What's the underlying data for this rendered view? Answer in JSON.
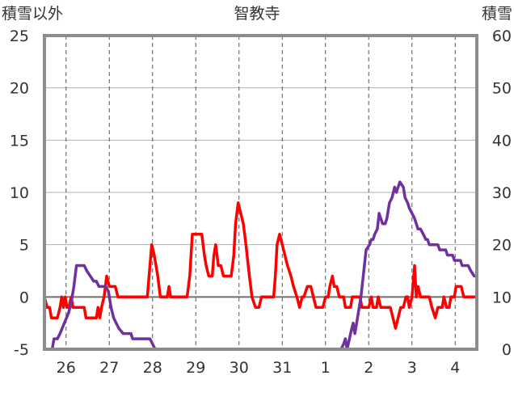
{
  "chart_data": {
    "type": "line",
    "title": "智教寺",
    "y_left_label": "積雪以外",
    "y_right_label": "積雪",
    "y_left_range": [
      -5,
      25
    ],
    "y_left_ticks": [
      "25",
      "20",
      "15",
      "10",
      "5",
      "0",
      "-5"
    ],
    "y_right_range": [
      0,
      60
    ],
    "y_right_ticks": [
      "60",
      "50",
      "40",
      "30",
      "20",
      "10",
      "0"
    ],
    "x_range": [
      0,
      10
    ],
    "x_tick_labels": [
      "26",
      "27",
      "28",
      "29",
      "30",
      "31",
      "1",
      "2",
      "3",
      "4"
    ],
    "grid": true,
    "series": [
      {
        "color": "#ff0000",
        "axis": "left",
        "points": [
          [
            0.0,
            0
          ],
          [
            0.06,
            -1
          ],
          [
            0.12,
            -1
          ],
          [
            0.16,
            -2
          ],
          [
            0.3,
            -2
          ],
          [
            0.36,
            -1
          ],
          [
            0.4,
            0
          ],
          [
            0.44,
            -1
          ],
          [
            0.48,
            0
          ],
          [
            0.52,
            -1
          ],
          [
            0.56,
            -1
          ],
          [
            0.62,
            0
          ],
          [
            0.66,
            -1
          ],
          [
            0.92,
            -1
          ],
          [
            0.96,
            -2
          ],
          [
            1.2,
            -2
          ],
          [
            1.24,
            -1
          ],
          [
            1.28,
            -2
          ],
          [
            1.32,
            -1
          ],
          [
            1.38,
            0
          ],
          [
            1.44,
            2
          ],
          [
            1.5,
            1
          ],
          [
            1.64,
            1
          ],
          [
            1.7,
            0
          ],
          [
            2.38,
            0
          ],
          [
            2.48,
            5
          ],
          [
            2.54,
            4
          ],
          [
            2.62,
            2
          ],
          [
            2.68,
            0
          ],
          [
            2.84,
            0
          ],
          [
            2.88,
            1
          ],
          [
            2.92,
            0
          ],
          [
            3.3,
            0
          ],
          [
            3.36,
            2
          ],
          [
            3.42,
            6
          ],
          [
            3.64,
            6
          ],
          [
            3.7,
            4
          ],
          [
            3.74,
            3
          ],
          [
            3.8,
            2
          ],
          [
            3.88,
            2
          ],
          [
            3.92,
            4
          ],
          [
            3.96,
            5
          ],
          [
            4.02,
            3
          ],
          [
            4.08,
            3
          ],
          [
            4.14,
            2
          ],
          [
            4.32,
            2
          ],
          [
            4.38,
            4
          ],
          [
            4.42,
            7
          ],
          [
            4.48,
            9
          ],
          [
            4.54,
            8
          ],
          [
            4.6,
            7
          ],
          [
            4.66,
            5
          ],
          [
            4.74,
            2
          ],
          [
            4.8,
            0
          ],
          [
            4.88,
            -1
          ],
          [
            4.96,
            -1
          ],
          [
            5.02,
            0
          ],
          [
            5.3,
            0
          ],
          [
            5.34,
            2
          ],
          [
            5.38,
            5
          ],
          [
            5.44,
            6
          ],
          [
            5.5,
            5
          ],
          [
            5.56,
            4
          ],
          [
            5.62,
            3
          ],
          [
            5.7,
            2
          ],
          [
            5.76,
            1
          ],
          [
            5.84,
            0
          ],
          [
            5.9,
            -1
          ],
          [
            5.96,
            0
          ],
          [
            6.0,
            0
          ],
          [
            6.08,
            1
          ],
          [
            6.16,
            1
          ],
          [
            6.22,
            0
          ],
          [
            6.28,
            -1
          ],
          [
            6.44,
            -1
          ],
          [
            6.5,
            0
          ],
          [
            6.56,
            0
          ],
          [
            6.6,
            1
          ],
          [
            6.66,
            2
          ],
          [
            6.7,
            1
          ],
          [
            6.76,
            1
          ],
          [
            6.82,
            0
          ],
          [
            6.92,
            0
          ],
          [
            6.96,
            -1
          ],
          [
            7.08,
            -1
          ],
          [
            7.12,
            0
          ],
          [
            7.3,
            0
          ],
          [
            7.34,
            -1
          ],
          [
            7.5,
            -1
          ],
          [
            7.56,
            0
          ],
          [
            7.6,
            -1
          ],
          [
            7.68,
            -1
          ],
          [
            7.72,
            0
          ],
          [
            7.78,
            -1
          ],
          [
            8.0,
            -1
          ],
          [
            8.06,
            -2
          ],
          [
            8.12,
            -3
          ],
          [
            8.18,
            -2
          ],
          [
            8.24,
            -1
          ],
          [
            8.3,
            -1
          ],
          [
            8.36,
            0
          ],
          [
            8.4,
            0
          ],
          [
            8.44,
            -1
          ],
          [
            8.5,
            0
          ],
          [
            8.56,
            3
          ],
          [
            8.6,
            0
          ],
          [
            8.64,
            1
          ],
          [
            8.7,
            0
          ],
          [
            8.9,
            0
          ],
          [
            8.96,
            -1
          ],
          [
            9.04,
            -2
          ],
          [
            9.1,
            -1
          ],
          [
            9.2,
            -1
          ],
          [
            9.24,
            0
          ],
          [
            9.3,
            -1
          ],
          [
            9.36,
            -1
          ],
          [
            9.4,
            0
          ],
          [
            9.48,
            0
          ],
          [
            9.52,
            1
          ],
          [
            9.64,
            1
          ],
          [
            9.7,
            0
          ],
          [
            9.94,
            0
          ]
        ]
      },
      {
        "color": "#7030a0",
        "axis": "right",
        "points": [
          [
            0.0,
            0
          ],
          [
            0.18,
            0
          ],
          [
            0.22,
            2
          ],
          [
            0.3,
            2
          ],
          [
            0.36,
            3
          ],
          [
            0.46,
            5
          ],
          [
            0.56,
            7
          ],
          [
            0.62,
            9
          ],
          [
            0.68,
            12
          ],
          [
            0.74,
            16
          ],
          [
            0.92,
            16
          ],
          [
            0.98,
            15
          ],
          [
            1.06,
            14
          ],
          [
            1.14,
            13
          ],
          [
            1.2,
            13
          ],
          [
            1.26,
            12
          ],
          [
            1.42,
            12
          ],
          [
            1.48,
            11
          ],
          [
            1.54,
            8
          ],
          [
            1.6,
            6
          ],
          [
            1.66,
            5
          ],
          [
            1.72,
            4
          ],
          [
            1.82,
            3
          ],
          [
            2.0,
            3
          ],
          [
            2.04,
            2
          ],
          [
            2.44,
            2
          ],
          [
            2.5,
            1
          ],
          [
            2.56,
            0
          ],
          [
            6.86,
            0
          ],
          [
            6.92,
            1
          ],
          [
            6.96,
            2
          ],
          [
            7.0,
            0
          ],
          [
            7.08,
            3
          ],
          [
            7.14,
            5
          ],
          [
            7.18,
            3
          ],
          [
            7.22,
            5
          ],
          [
            7.32,
            10
          ],
          [
            7.4,
            16
          ],
          [
            7.44,
            19
          ],
          [
            7.52,
            20
          ],
          [
            7.56,
            21
          ],
          [
            7.6,
            21
          ],
          [
            7.64,
            22
          ],
          [
            7.7,
            23
          ],
          [
            7.74,
            26
          ],
          [
            7.82,
            24
          ],
          [
            7.88,
            24
          ],
          [
            7.92,
            25
          ],
          [
            7.98,
            28
          ],
          [
            8.04,
            29
          ],
          [
            8.1,
            31
          ],
          [
            8.14,
            30
          ],
          [
            8.18,
            31
          ],
          [
            8.22,
            32
          ],
          [
            8.3,
            31
          ],
          [
            8.34,
            29
          ],
          [
            8.4,
            28
          ],
          [
            8.44,
            27
          ],
          [
            8.5,
            26
          ],
          [
            8.56,
            25
          ],
          [
            8.6,
            24
          ],
          [
            8.64,
            23
          ],
          [
            8.7,
            23
          ],
          [
            8.76,
            22
          ],
          [
            8.82,
            21
          ],
          [
            8.86,
            21
          ],
          [
            8.9,
            20
          ],
          [
            9.1,
            20
          ],
          [
            9.14,
            19
          ],
          [
            9.28,
            19
          ],
          [
            9.32,
            18
          ],
          [
            9.44,
            18
          ],
          [
            9.48,
            17
          ],
          [
            9.62,
            17
          ],
          [
            9.66,
            16
          ],
          [
            9.8,
            16
          ],
          [
            9.86,
            15
          ],
          [
            9.94,
            14
          ]
        ]
      }
    ]
  }
}
